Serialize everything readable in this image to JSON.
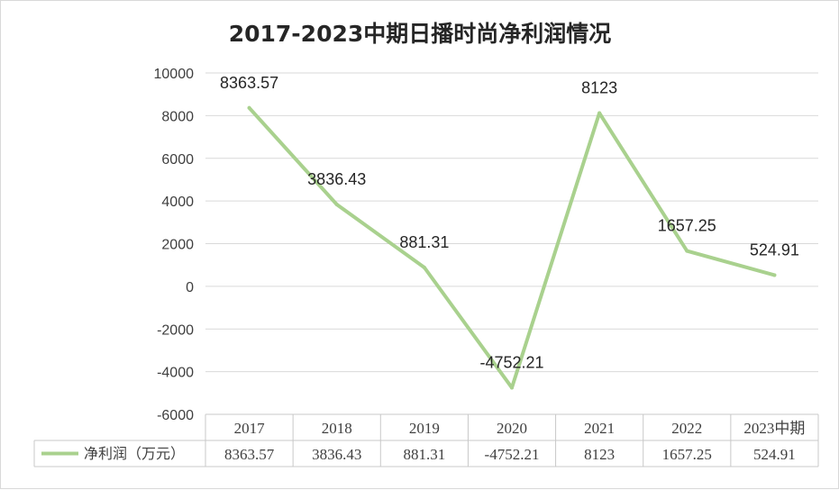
{
  "chart_data": {
    "type": "line",
    "title": "2017-2023中期日播时尚净利润情况",
    "categories": [
      "2017",
      "2018",
      "2019",
      "2020",
      "2021",
      "2022",
      "2023中期"
    ],
    "series": [
      {
        "name": "净利润（万元）",
        "values": [
          8363.57,
          3836.43,
          881.31,
          -4752.21,
          8123,
          1657.25,
          524.91
        ],
        "labels": [
          "8363.57",
          "3836.43",
          "881.31",
          "-4752.21",
          "8123",
          "1657.25",
          "524.91"
        ],
        "color": "#a9d18e"
      }
    ],
    "ylim": [
      -6000,
      10000
    ],
    "yticks": [
      10000,
      8000,
      6000,
      4000,
      2000,
      0,
      -2000,
      -4000,
      -6000
    ],
    "grid": true,
    "legend": "data-table-bottom"
  }
}
